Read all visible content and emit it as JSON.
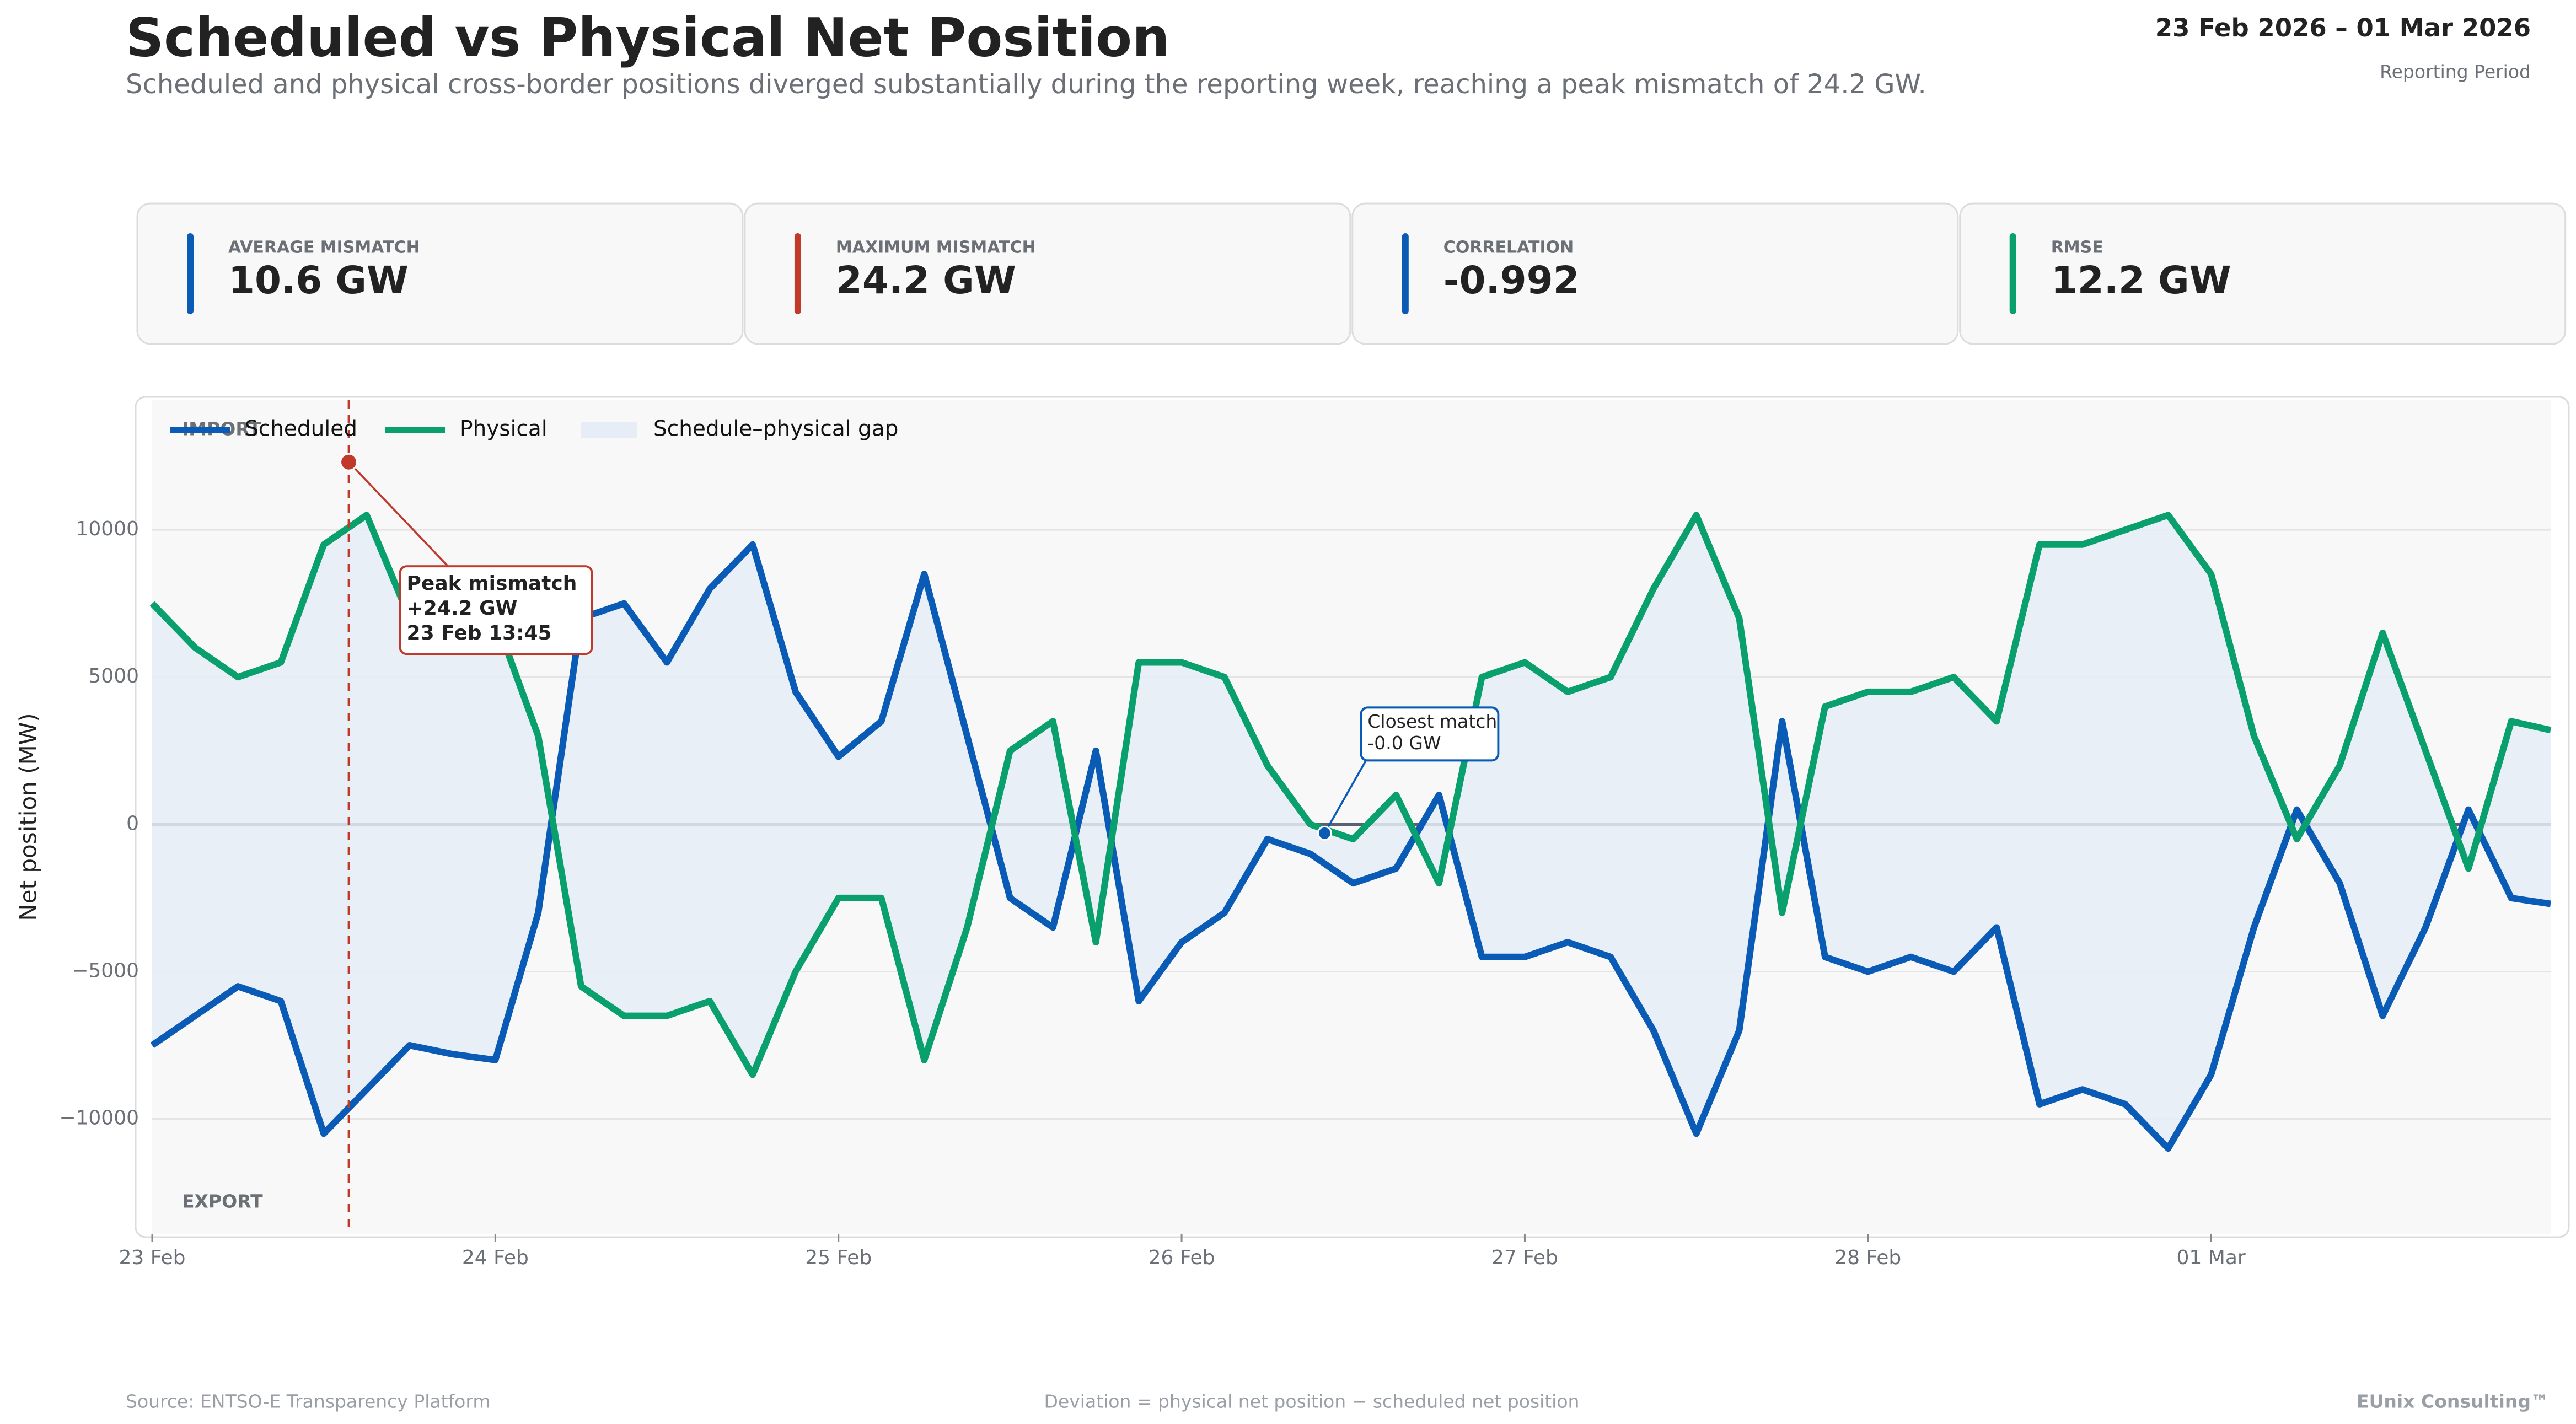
{
  "header": {
    "title": "Scheduled vs Physical Net Position",
    "subtitle": "Scheduled and physical cross-border positions diverged substantially during the reporting week, reaching a peak mismatch of 24.2 GW.",
    "period": "23 Feb 2026 – 01 Mar 2026",
    "period_label": "Reporting Period"
  },
  "kpis": [
    {
      "label": "AVERAGE MISMATCH",
      "value": "10.6 GW",
      "color": "#0a5bb5"
    },
    {
      "label": "MAXIMUM MISMATCH",
      "value": "24.2 GW",
      "color": "#c0392b"
    },
    {
      "label": "CORRELATION",
      "value": "-0.992",
      "color": "#0a5bb5"
    },
    {
      "label": "RMSE",
      "value": "12.2 GW",
      "color": "#0aa06e"
    }
  ],
  "chart_data": {
    "type": "line",
    "ylabel": "Net position (MW)",
    "import_label": "IMPORT",
    "export_label": "EXPORT",
    "x": [
      "2026-02-23T00:00",
      "2026-02-23T03:00",
      "2026-02-23T06:00",
      "2026-02-23T09:00",
      "2026-02-23T12:00",
      "2026-02-23T15:00",
      "2026-02-23T18:00",
      "2026-02-23T21:00",
      "2026-02-24T00:00",
      "2026-02-24T03:00",
      "2026-02-24T06:00",
      "2026-02-24T09:00",
      "2026-02-24T12:00",
      "2026-02-24T15:00",
      "2026-02-24T18:00",
      "2026-02-24T21:00",
      "2026-02-25T00:00",
      "2026-02-25T03:00",
      "2026-02-25T06:00",
      "2026-02-25T09:00",
      "2026-02-25T12:00",
      "2026-02-25T15:00",
      "2026-02-25T18:00",
      "2026-02-25T21:00",
      "2026-02-26T00:00",
      "2026-02-26T03:00",
      "2026-02-26T06:00",
      "2026-02-26T09:00",
      "2026-02-26T12:00",
      "2026-02-26T15:00",
      "2026-02-26T18:00",
      "2026-02-26T21:00",
      "2026-02-27T00:00",
      "2026-02-27T03:00",
      "2026-02-27T06:00",
      "2026-02-27T09:00",
      "2026-02-27T12:00",
      "2026-02-27T15:00",
      "2026-02-27T18:00",
      "2026-02-27T21:00",
      "2026-02-28T00:00",
      "2026-02-28T03:00",
      "2026-02-28T06:00",
      "2026-02-28T09:00",
      "2026-02-28T12:00",
      "2026-02-28T15:00",
      "2026-02-28T18:00",
      "2026-02-28T21:00",
      "2026-03-01T00:00",
      "2026-03-01T03:00",
      "2026-03-01T06:00",
      "2026-03-01T09:00",
      "2026-03-01T12:00",
      "2026-03-01T15:00",
      "2026-03-01T18:00",
      "2026-03-01T21:00",
      "2026-03-01T23:45"
    ],
    "series": [
      {
        "name": "Scheduled",
        "color": "#0a5bb5",
        "values": [
          -7500,
          -6500,
          -5500,
          -6000,
          -10500,
          -9000,
          -7500,
          -7800,
          -8000,
          -3000,
          7000,
          7500,
          5500,
          8000,
          9500,
          4500,
          2300,
          3500,
          8500,
          3000,
          -2500,
          -3500,
          2500,
          -6000,
          -4000,
          -3000,
          -500,
          -1000,
          -2000,
          -1500,
          1000,
          -4500,
          -4500,
          -4000,
          -4500,
          -7000,
          -10500,
          -7000,
          3500,
          -4500,
          -5000,
          -4500,
          -5000,
          -3500,
          -9500,
          -9000,
          -9500,
          -11000,
          -8500,
          -3500,
          500,
          -2000,
          -6500,
          -3500,
          500,
          -2500,
          -2700
        ]
      },
      {
        "name": "Physical",
        "color": "#0aa06e",
        "values": [
          7500,
          6000,
          5000,
          5500,
          9500,
          10500,
          7000,
          7500,
          7000,
          3000,
          -5500,
          -6500,
          -6500,
          -6000,
          -8500,
          -5000,
          -2500,
          -2500,
          -8000,
          -3500,
          2500,
          3500,
          -4000,
          5500,
          5500,
          5000,
          2000,
          0,
          -500,
          1000,
          -2000,
          5000,
          5500,
          4500,
          5000,
          8000,
          10500,
          7000,
          -3000,
          4000,
          4500,
          4500,
          5000,
          3500,
          9500,
          9500,
          10000,
          10500,
          8500,
          3000,
          -500,
          2000,
          6500,
          2500,
          -1500,
          3500,
          3200
        ]
      }
    ],
    "gap": {
      "name": "Schedule–physical gap",
      "color": "#e6edf6"
    },
    "xlim": [
      "2026-02-23T00:00",
      "2026-03-01T23:45"
    ],
    "xticks": [
      {
        "value": "2026-02-23T00:00",
        "label": "23 Feb"
      },
      {
        "value": "2026-02-24T00:00",
        "label": "24 Feb"
      },
      {
        "value": "2026-02-25T00:00",
        "label": "25 Feb"
      },
      {
        "value": "2026-02-26T00:00",
        "label": "26 Feb"
      },
      {
        "value": "2026-02-27T00:00",
        "label": "27 Feb"
      },
      {
        "value": "2026-02-28T00:00",
        "label": "28 Feb"
      },
      {
        "value": "2026-03-01T00:00",
        "label": "01 Mar"
      }
    ],
    "ylim": [
      -13900,
      14400
    ],
    "yticks": [
      {
        "value": -10000,
        "label": "−10000"
      },
      {
        "value": -5000,
        "label": "−5000"
      },
      0,
      5000,
      10000
    ],
    "grid": true,
    "legend": "upper left",
    "annotations": [
      {
        "kind": "peak",
        "x": "2026-02-23T13:45",
        "y": 12300,
        "color": "#c0392b",
        "lines": [
          "Peak mismatch",
          "+24.2 GW",
          "23 Feb 13:45"
        ]
      },
      {
        "kind": "closest",
        "x": "2026-02-26T10:00",
        "y": -300,
        "color": "#0a5bb5",
        "lines": [
          "Closest match",
          "-0.0 GW"
        ]
      }
    ]
  },
  "footer": {
    "source": "Source: ENTSO-E Transparency Platform",
    "note": "Deviation = physical net position − scheduled net position",
    "brand": "EUnix Consulting™"
  }
}
